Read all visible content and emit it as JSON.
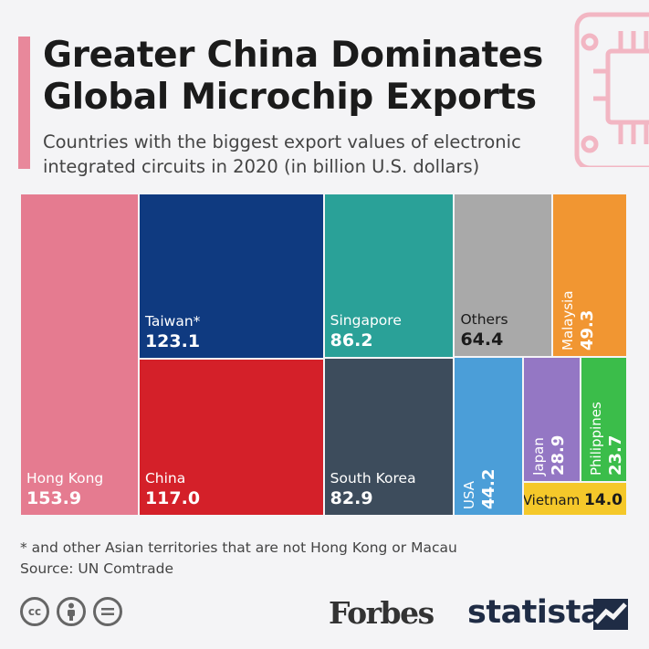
{
  "header": {
    "title_line1": "Greater China Dominates",
    "title_line2": "Global Microchip Exports",
    "subtitle_line1": "Countries with the biggest export values of electronic",
    "subtitle_line2": "integrated circuits in 2020 (in billion U.S. dollars)"
  },
  "chart_data": {
    "type": "treemap",
    "unit": "billion U.S. dollars",
    "items": [
      {
        "name": "Hong Kong",
        "value": 153.9,
        "display": "153.9",
        "color": "#e57b90"
      },
      {
        "name": "Taiwan*",
        "value": 123.1,
        "display": "123.1",
        "color": "#0f3a80"
      },
      {
        "name": "China",
        "value": 117.0,
        "display": "117.0",
        "color": "#d42029"
      },
      {
        "name": "Singapore",
        "value": 86.2,
        "display": "86.2",
        "color": "#2aa198"
      },
      {
        "name": "South Korea",
        "value": 82.9,
        "display": "82.9",
        "color": "#3d4c5c"
      },
      {
        "name": "Others",
        "value": 64.4,
        "display": "64.4",
        "color": "#a9a9a9"
      },
      {
        "name": "Malaysia",
        "value": 49.3,
        "display": "49.3",
        "color": "#f19632"
      },
      {
        "name": "USA",
        "value": 44.2,
        "display": "44.2",
        "color": "#4b9ed8"
      },
      {
        "name": "Japan",
        "value": 28.9,
        "display": "28.9",
        "color": "#9477c4"
      },
      {
        "name": "Philippines",
        "value": 23.7,
        "display": "23.7",
        "color": "#3bbd4a"
      },
      {
        "name": "Vietnam",
        "value": 14.0,
        "display": "14.0",
        "color": "#f5c82a"
      }
    ]
  },
  "footer": {
    "footnote": "* and other Asian territories that are not Hong Kong or Macau",
    "source": "Source: UN Comtrade",
    "cc_icons": [
      "cc-icon",
      "attribution-icon",
      "no-derivatives-icon"
    ],
    "brand_forbes": "Forbes",
    "brand_statista": "statista"
  }
}
